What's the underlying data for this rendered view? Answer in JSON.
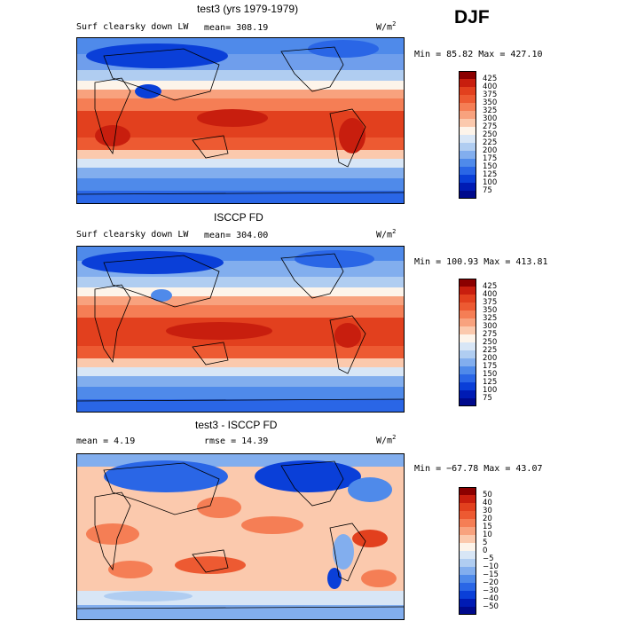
{
  "season": "DJF",
  "panels": [
    {
      "title": "test3 (yrs 1979-1979)",
      "left_label": "Surf clearsky down LW",
      "mean_label": "mean= 308.19",
      "units_base": "W/m",
      "units_sup": "2",
      "minmax": "Min =  85.82 Max = 427.10",
      "colorbar": {
        "labels": [
          "425",
          "400",
          "375",
          "350",
          "325",
          "300",
          "275",
          "250",
          "225",
          "200",
          "175",
          "150",
          "125",
          "100",
          "75"
        ],
        "colors": [
          "#8b0000",
          "#c81e0e",
          "#e2401e",
          "#ed5a32",
          "#f57e55",
          "#f8a27e",
          "#fbc9ad",
          "#fdf4ea",
          "#d8e6f6",
          "#b0cdf1",
          "#82aeee",
          "#4f8aea",
          "#2a66e6",
          "#0a3fd8",
          "#001bb4",
          "#000a8c"
        ]
      }
    },
    {
      "title": "ISCCP FD",
      "left_label": "Surf clearsky down LW",
      "mean_label": "mean= 304.00",
      "units_base": "W/m",
      "units_sup": "2",
      "minmax": "Min = 100.93 Max = 413.81",
      "colorbar": {
        "labels": [
          "425",
          "400",
          "375",
          "350",
          "325",
          "300",
          "275",
          "250",
          "225",
          "200",
          "175",
          "150",
          "125",
          "100",
          "75"
        ],
        "colors": [
          "#8b0000",
          "#c81e0e",
          "#e2401e",
          "#ed5a32",
          "#f57e55",
          "#f8a27e",
          "#fbc9ad",
          "#fdf4ea",
          "#d8e6f6",
          "#b0cdf1",
          "#82aeee",
          "#4f8aea",
          "#2a66e6",
          "#0a3fd8",
          "#001bb4",
          "#000a8c"
        ]
      }
    },
    {
      "title": "test3 - ISCCP FD",
      "left_label": "mean =   4.19",
      "mean_label": "rmse =  14.39",
      "units_base": "W/m",
      "units_sup": "2",
      "minmax": "Min = −67.78 Max =  43.07",
      "colorbar": {
        "labels": [
          "50",
          "40",
          "30",
          "20",
          "15",
          "10",
          "5",
          "0",
          "−5",
          "−10",
          "−15",
          "−20",
          "−30",
          "−40",
          "−50"
        ],
        "colors": [
          "#8b0000",
          "#c81e0e",
          "#e2401e",
          "#ed5a32",
          "#f57e55",
          "#f8a27e",
          "#fbc9ad",
          "#fdf4ea",
          "#d8e6f6",
          "#b0cdf1",
          "#82aeee",
          "#4f8aea",
          "#2a66e6",
          "#0a3fd8",
          "#001bb4",
          "#000a8c"
        ]
      }
    }
  ]
}
